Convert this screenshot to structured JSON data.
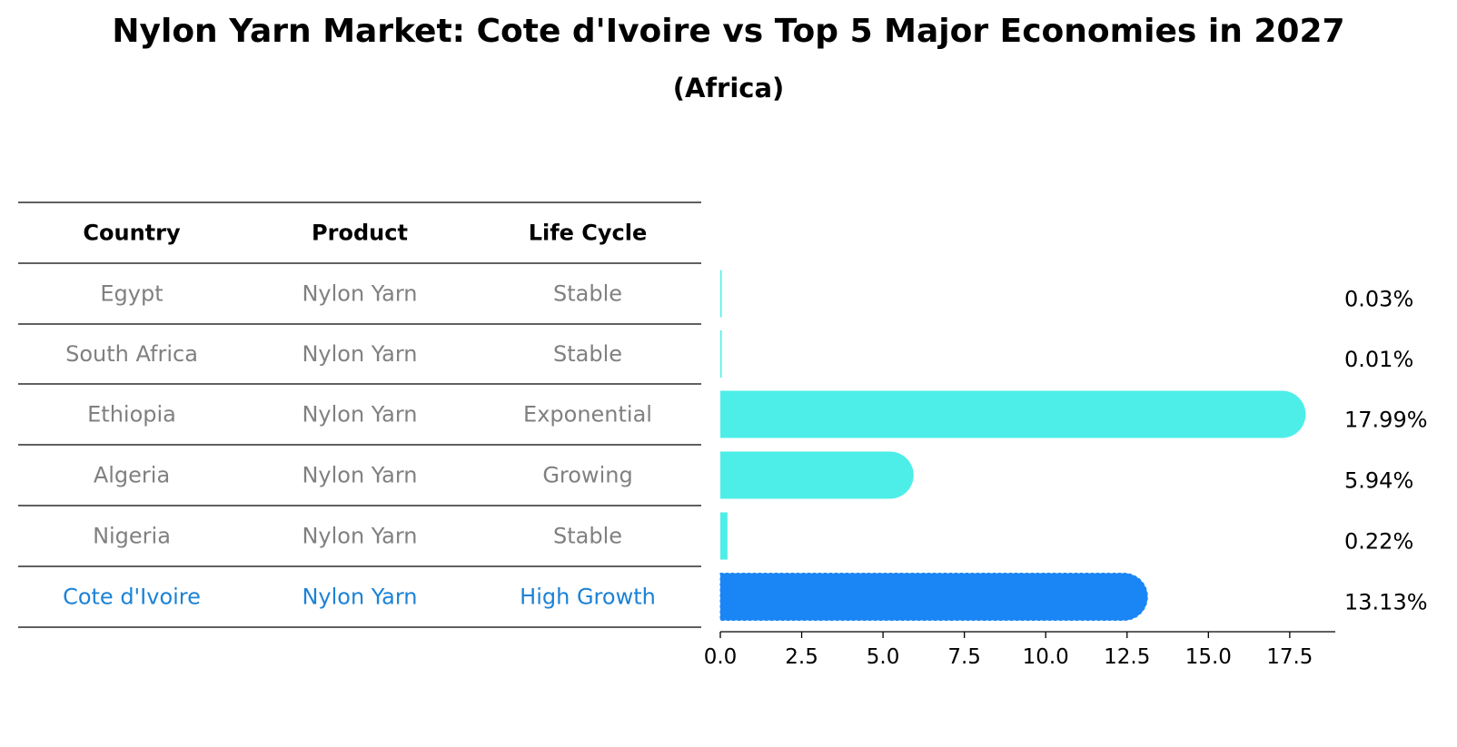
{
  "title": "Nylon Yarn Market: Cote d'Ivoire vs Top 5 Major Economies in 2027",
  "subtitle": "(Africa)",
  "table": {
    "headers": [
      "Country",
      "Product",
      "Life Cycle"
    ],
    "rows": [
      {
        "country": "Egypt",
        "product": "Nylon Yarn",
        "life_cycle": "Stable"
      },
      {
        "country": "South Africa",
        "product": "Nylon Yarn",
        "life_cycle": "Stable"
      },
      {
        "country": "Ethiopia",
        "product": "Nylon Yarn",
        "life_cycle": "Exponential"
      },
      {
        "country": "Algeria",
        "product": "Nylon Yarn",
        "life_cycle": "Growing"
      },
      {
        "country": "Nigeria",
        "product": "Nylon Yarn",
        "life_cycle": "Stable"
      },
      {
        "country": "Cote d'Ivoire",
        "product": "Nylon Yarn",
        "life_cycle": "High Growth"
      }
    ],
    "highlight_row": 5
  },
  "chart_data": {
    "type": "bar",
    "orientation": "horizontal",
    "title": "Nylon Yarn Market: Cote d'Ivoire vs Top 5 Major Economies in 2027",
    "subtitle": "(Africa)",
    "categories": [
      "Egypt",
      "South Africa",
      "Ethiopia",
      "Algeria",
      "Nigeria",
      "Cote d'Ivoire"
    ],
    "values": [
      0.03,
      0.01,
      17.99,
      5.94,
      0.22,
      13.13
    ],
    "labels": [
      "0.03%",
      "0.01%",
      "17.99%",
      "5.94%",
      "0.22%",
      "13.13%"
    ],
    "xlim": [
      0,
      18.9
    ],
    "xticks": [
      0.0,
      2.5,
      5.0,
      7.5,
      10.0,
      12.5,
      15.0,
      17.5
    ],
    "xtick_labels": [
      "0.0",
      "2.5",
      "5.0",
      "7.5",
      "10.0",
      "12.5",
      "15.0",
      "17.5"
    ],
    "xlabel": "",
    "ylabel": "",
    "grid": false,
    "colors": {
      "default": "#4deee8",
      "highlight": "#1a86f5"
    }
  }
}
